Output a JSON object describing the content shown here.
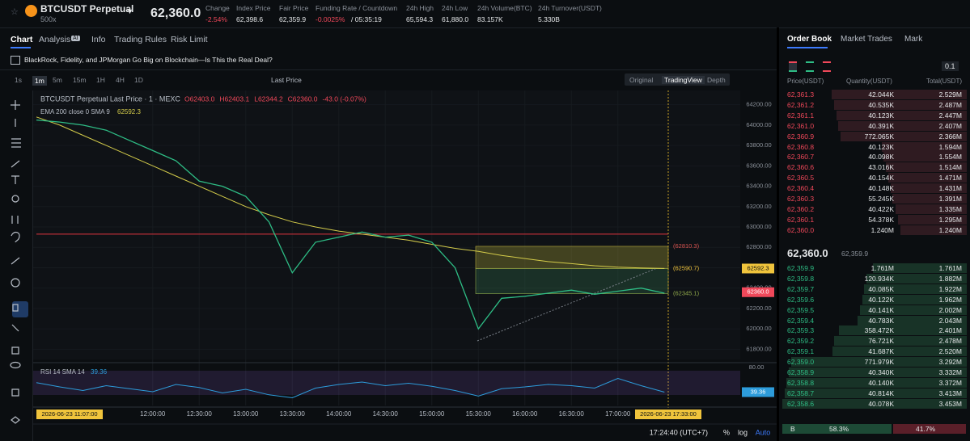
{
  "header": {
    "symbol": "BTCUSDT Perpetual",
    "leverage": "500x",
    "price": "62,360.0",
    "stats": [
      {
        "label": "Change",
        "value": "-2.54%"
      },
      {
        "label": "Index Price",
        "value": "62,398.6"
      },
      {
        "label": "Fair Price",
        "value": "62,359.9"
      },
      {
        "label": "Funding Rate / Countdown",
        "value": "-0.0025%",
        "extra": "/ 05:35:19"
      },
      {
        "label": "24h High",
        "value": "65,594.3"
      },
      {
        "label": "24h Low",
        "value": "61,880.0"
      },
      {
        "label": "24h Volume(BTC)",
        "value": "83.157K"
      },
      {
        "label": "24h Turnover(USDT)",
        "value": "5.330B"
      }
    ]
  },
  "tabs": [
    "Chart",
    "Analysis",
    "Info",
    "Trading Rules",
    "Risk Limit"
  ],
  "analysis_badge": "AI",
  "news": "BlackRock, Fidelity, and JPMorgan Go Big on Blockchain—Is This the Real Deal?",
  "intervals": [
    "1s",
    "1m",
    "5m",
    "15m",
    "1H",
    "4H",
    "1D"
  ],
  "price_type": "Last Price",
  "views": [
    "Original",
    "TradingView",
    "Depth"
  ],
  "legend": {
    "title": "BTCUSDT Perpetual Last Price · 1 · MEXC",
    "open": "O62403.0",
    "high": "H62403.1",
    "low": "L62344.2",
    "close": "C62360.0",
    "change": "-43.0 (-0.07%)",
    "ema": "EMA 200 close 0 SMA 9",
    "ema_value": "62592.3"
  },
  "price_chart": {
    "ylim": [
      61700,
      64340
    ],
    "yticks": [
      {
        "value": 61800,
        "label": "61800.00"
      },
      {
        "value": 62000,
        "label": "62000.00"
      },
      {
        "value": 62200,
        "label": "62200.00"
      },
      {
        "value": 62400,
        "label": "62400.00"
      },
      {
        "value": 62600,
        "label": "62600.00"
      },
      {
        "value": 62800,
        "label": "62800.00"
      },
      {
        "value": 63000,
        "label": "63000.00"
      },
      {
        "value": 63200,
        "label": "63200.00"
      },
      {
        "value": 63400,
        "label": "63400.00"
      },
      {
        "value": 63600,
        "label": "63600.00"
      },
      {
        "value": 63800,
        "label": "63800.00"
      },
      {
        "value": 64000,
        "label": "64000.00"
      },
      {
        "value": 64200,
        "label": "64200.00"
      }
    ],
    "close": [
      64050,
      64030,
      64000,
      63950,
      63850,
      63750,
      63650,
      63450,
      63400,
      63300,
      63050,
      62550,
      62850,
      62900,
      62950,
      62900,
      62920,
      62850,
      62600,
      62000,
      62300,
      62320,
      62350,
      62380,
      62340,
      62370,
      62400,
      62350
    ],
    "ema": [
      64080,
      64000,
      63900,
      63800,
      63700,
      63600,
      63500,
      63400,
      63300,
      63200,
      63120,
      63050,
      63000,
      62960,
      62930,
      62900,
      62870,
      62830,
      62790,
      62760,
      62720,
      62690,
      62660,
      62640,
      62620,
      62605,
      62598,
      62592.3
    ],
    "alert_line": 62930,
    "levels": [
      {
        "value": 62810.3,
        "label": "(62810.3)"
      },
      {
        "value": 62590.7,
        "label": "(62590.7)"
      },
      {
        "value": 62345.1,
        "label": "(62345.1)"
      }
    ],
    "badges": [
      {
        "value": 62592.3,
        "label": "62592.3",
        "color": "#f0c43c"
      },
      {
        "value": 62360.0,
        "label": "62360.0",
        "color": "#f0485a"
      }
    ],
    "times": [
      "12:00:00",
      "12:30:00",
      "13:00:00",
      "13:30:00",
      "14:00:00",
      "14:30:00",
      "15:00:00",
      "15:30:00",
      "16:00:00",
      "16:30:00",
      "17:00:00"
    ],
    "cursor_start": "2026-06-23  11:07:00",
    "cursor_end": "2026-06-23  17:33:00"
  },
  "rsi": {
    "label": "RSI 14 SMA 14",
    "value": 39.36,
    "ylim": [
      20,
      80
    ],
    "top_tick": {
      "value": 80,
      "label": "80.00"
    },
    "values": [
      55,
      48,
      42,
      50,
      45,
      40,
      52,
      47,
      38,
      44,
      35,
      30,
      46,
      52,
      56,
      50,
      54,
      49,
      42,
      33,
      45,
      48,
      52,
      50,
      46,
      62,
      50,
      39.36
    ]
  },
  "footer": {
    "time": "17:24:40 (UTC+7)",
    "pct": "%",
    "log": "log",
    "auto": "Auto"
  },
  "order_book": {
    "tabs": [
      "Order Book",
      "Market Trades",
      "Mark"
    ],
    "precision": "0.1",
    "columns": [
      "Price(USDT)",
      "Quantity(USDT)",
      "Total(USDT)"
    ],
    "asks": [
      [
        "62,361.3",
        "42.044K",
        "2.529M"
      ],
      [
        "62,361.2",
        "40.535K",
        "2.487M"
      ],
      [
        "62,361.1",
        "40.123K",
        "2.447M"
      ],
      [
        "62,361.0",
        "40.391K",
        "2.407M"
      ],
      [
        "62,360.9",
        "772.065K",
        "2.366M"
      ],
      [
        "62,360.8",
        "40.123K",
        "1.594M"
      ],
      [
        "62,360.7",
        "40.098K",
        "1.554M"
      ],
      [
        "62,360.6",
        "43.016K",
        "1.514M"
      ],
      [
        "62,360.5",
        "40.154K",
        "1.471M"
      ],
      [
        "62,360.4",
        "40.148K",
        "1.431M"
      ],
      [
        "62,360.3",
        "55.245K",
        "1.391M"
      ],
      [
        "62,360.2",
        "40.422K",
        "1.335M"
      ],
      [
        "62,360.1",
        "54.378K",
        "1.295M"
      ],
      [
        "62,360.0",
        "1.240M",
        "1.240M"
      ]
    ],
    "last": "62,360.0",
    "fair": "62,359.9",
    "bids": [
      [
        "62,359.9",
        "1.761M",
        "1.761M"
      ],
      [
        "62,359.8",
        "120.934K",
        "1.882M"
      ],
      [
        "62,359.7",
        "40.085K",
        "1.922M"
      ],
      [
        "62,359.6",
        "40.122K",
        "1.962M"
      ],
      [
        "62,359.5",
        "40.141K",
        "2.002M"
      ],
      [
        "62,359.4",
        "40.783K",
        "2.043M"
      ],
      [
        "62,359.3",
        "358.472K",
        "2.401M"
      ],
      [
        "62,359.2",
        "76.721K",
        "2.478M"
      ],
      [
        "62,359.1",
        "41.687K",
        "2.520M"
      ],
      [
        "62,359.0",
        "771.979K",
        "3.292M"
      ],
      [
        "62,358.9",
        "40.340K",
        "3.332M"
      ],
      [
        "62,358.8",
        "40.140K",
        "3.372M"
      ],
      [
        "62,358.7",
        "40.814K",
        "3.413M"
      ],
      [
        "62,358.6",
        "40.078K",
        "3.453M"
      ]
    ],
    "buy_label": "B",
    "buy_pct": "58.3%",
    "sell_pct": "41.7%"
  }
}
